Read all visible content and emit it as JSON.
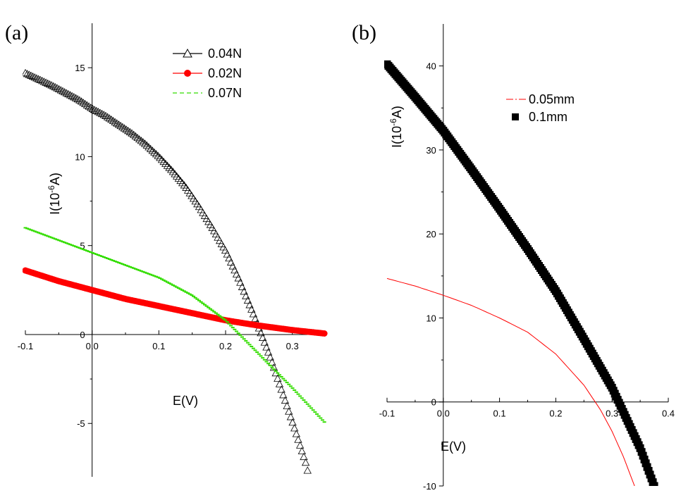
{
  "chart_data": [
    {
      "panel_label": "(a)",
      "type": "scatter",
      "xlabel": "E(V)",
      "ylabel_main": "I(10",
      "ylabel_sup": "-6",
      "ylabel_tail": "A)",
      "xlim": [
        -0.1,
        0.35
      ],
      "ylim": [
        -8,
        17.5
      ],
      "x_ticks": [
        -0.1,
        0.0,
        0.1,
        0.2,
        0.3
      ],
      "x_tick_labels": [
        "-0.1",
        "0.0",
        "0.1",
        "0.2",
        "0.3"
      ],
      "y_ticks": [
        -5,
        0,
        5,
        10,
        15
      ],
      "y_tick_labels": [
        "-5",
        "0",
        "5",
        "10",
        "15"
      ],
      "legend_position": "top-right",
      "series": [
        {
          "name": "0.04N",
          "color": "#000000",
          "marker": "open-triangle",
          "line": "solid",
          "x": [
            -0.1,
            -0.08,
            -0.06,
            -0.04,
            -0.02,
            0.0,
            0.02,
            0.04,
            0.06,
            0.08,
            0.1,
            0.12,
            0.14,
            0.16,
            0.18,
            0.2,
            0.22,
            0.24,
            0.26,
            0.27,
            0.28,
            0.3,
            0.32,
            0.325
          ],
          "y": [
            14.7,
            14.35,
            14.0,
            13.6,
            13.2,
            12.7,
            12.3,
            11.8,
            11.3,
            10.7,
            10.0,
            9.2,
            8.3,
            7.2,
            6.0,
            4.7,
            3.1,
            1.3,
            -0.6,
            -1.6,
            -2.7,
            -4.9,
            -7.2,
            -8.0
          ]
        },
        {
          "name": "0.02N",
          "color": "#ff0000",
          "marker": "filled-circle",
          "line": "solid",
          "x": [
            -0.1,
            -0.05,
            0.0,
            0.05,
            0.1,
            0.15,
            0.2,
            0.25,
            0.3,
            0.35
          ],
          "y": [
            3.6,
            3.0,
            2.5,
            2.0,
            1.6,
            1.2,
            0.8,
            0.5,
            0.25,
            0.05
          ]
        },
        {
          "name": "0.07N",
          "color": "#33dd00",
          "marker": "dash",
          "line": "dashed",
          "x": [
            -0.1,
            -0.05,
            0.0,
            0.05,
            0.1,
            0.15,
            0.2,
            0.25,
            0.3,
            0.35
          ],
          "y": [
            6.0,
            5.3,
            4.6,
            3.9,
            3.2,
            2.2,
            0.8,
            -1.1,
            -3.0,
            -5.0
          ]
        }
      ]
    },
    {
      "panel_label": "(b)",
      "type": "scatter",
      "xlabel": "E(V)",
      "ylabel_main": "I(10",
      "ylabel_sup": "-6",
      "ylabel_tail": "A)",
      "xlim": [
        -0.1,
        0.4
      ],
      "ylim": [
        -10,
        45
      ],
      "x_ticks": [
        -0.1,
        0.0,
        0.1,
        0.2,
        0.3,
        0.4
      ],
      "x_tick_labels": [
        "-0.1",
        "0.0",
        "0.1",
        "0.2",
        "0.3",
        "0.4"
      ],
      "y_ticks": [
        -10,
        0,
        10,
        20,
        30,
        40
      ],
      "y_tick_labels": [
        "-10",
        "0",
        "10",
        "20",
        "30",
        "40"
      ],
      "legend_position": "top-right",
      "series": [
        {
          "name": "0.05mm",
          "color": "#ff0000",
          "marker": "none",
          "line": "dash-dot",
          "x": [
            -0.1,
            -0.05,
            0.0,
            0.05,
            0.1,
            0.15,
            0.2,
            0.25,
            0.28,
            0.3,
            0.32,
            0.34
          ],
          "y": [
            14.7,
            13.8,
            12.7,
            11.5,
            10.0,
            8.3,
            5.7,
            2.0,
            -1.0,
            -3.5,
            -6.5,
            -10.0
          ]
        },
        {
          "name": "0.1mm",
          "color": "#000000",
          "marker": "filled-square",
          "line": "solid",
          "x": [
            -0.1,
            -0.05,
            0.0,
            0.05,
            0.1,
            0.15,
            0.2,
            0.25,
            0.3,
            0.35,
            0.375
          ],
          "y": [
            40.2,
            36.3,
            32.3,
            27.7,
            23.0,
            18.2,
            13.2,
            7.5,
            1.7,
            -5.5,
            -10.0
          ]
        }
      ]
    }
  ]
}
